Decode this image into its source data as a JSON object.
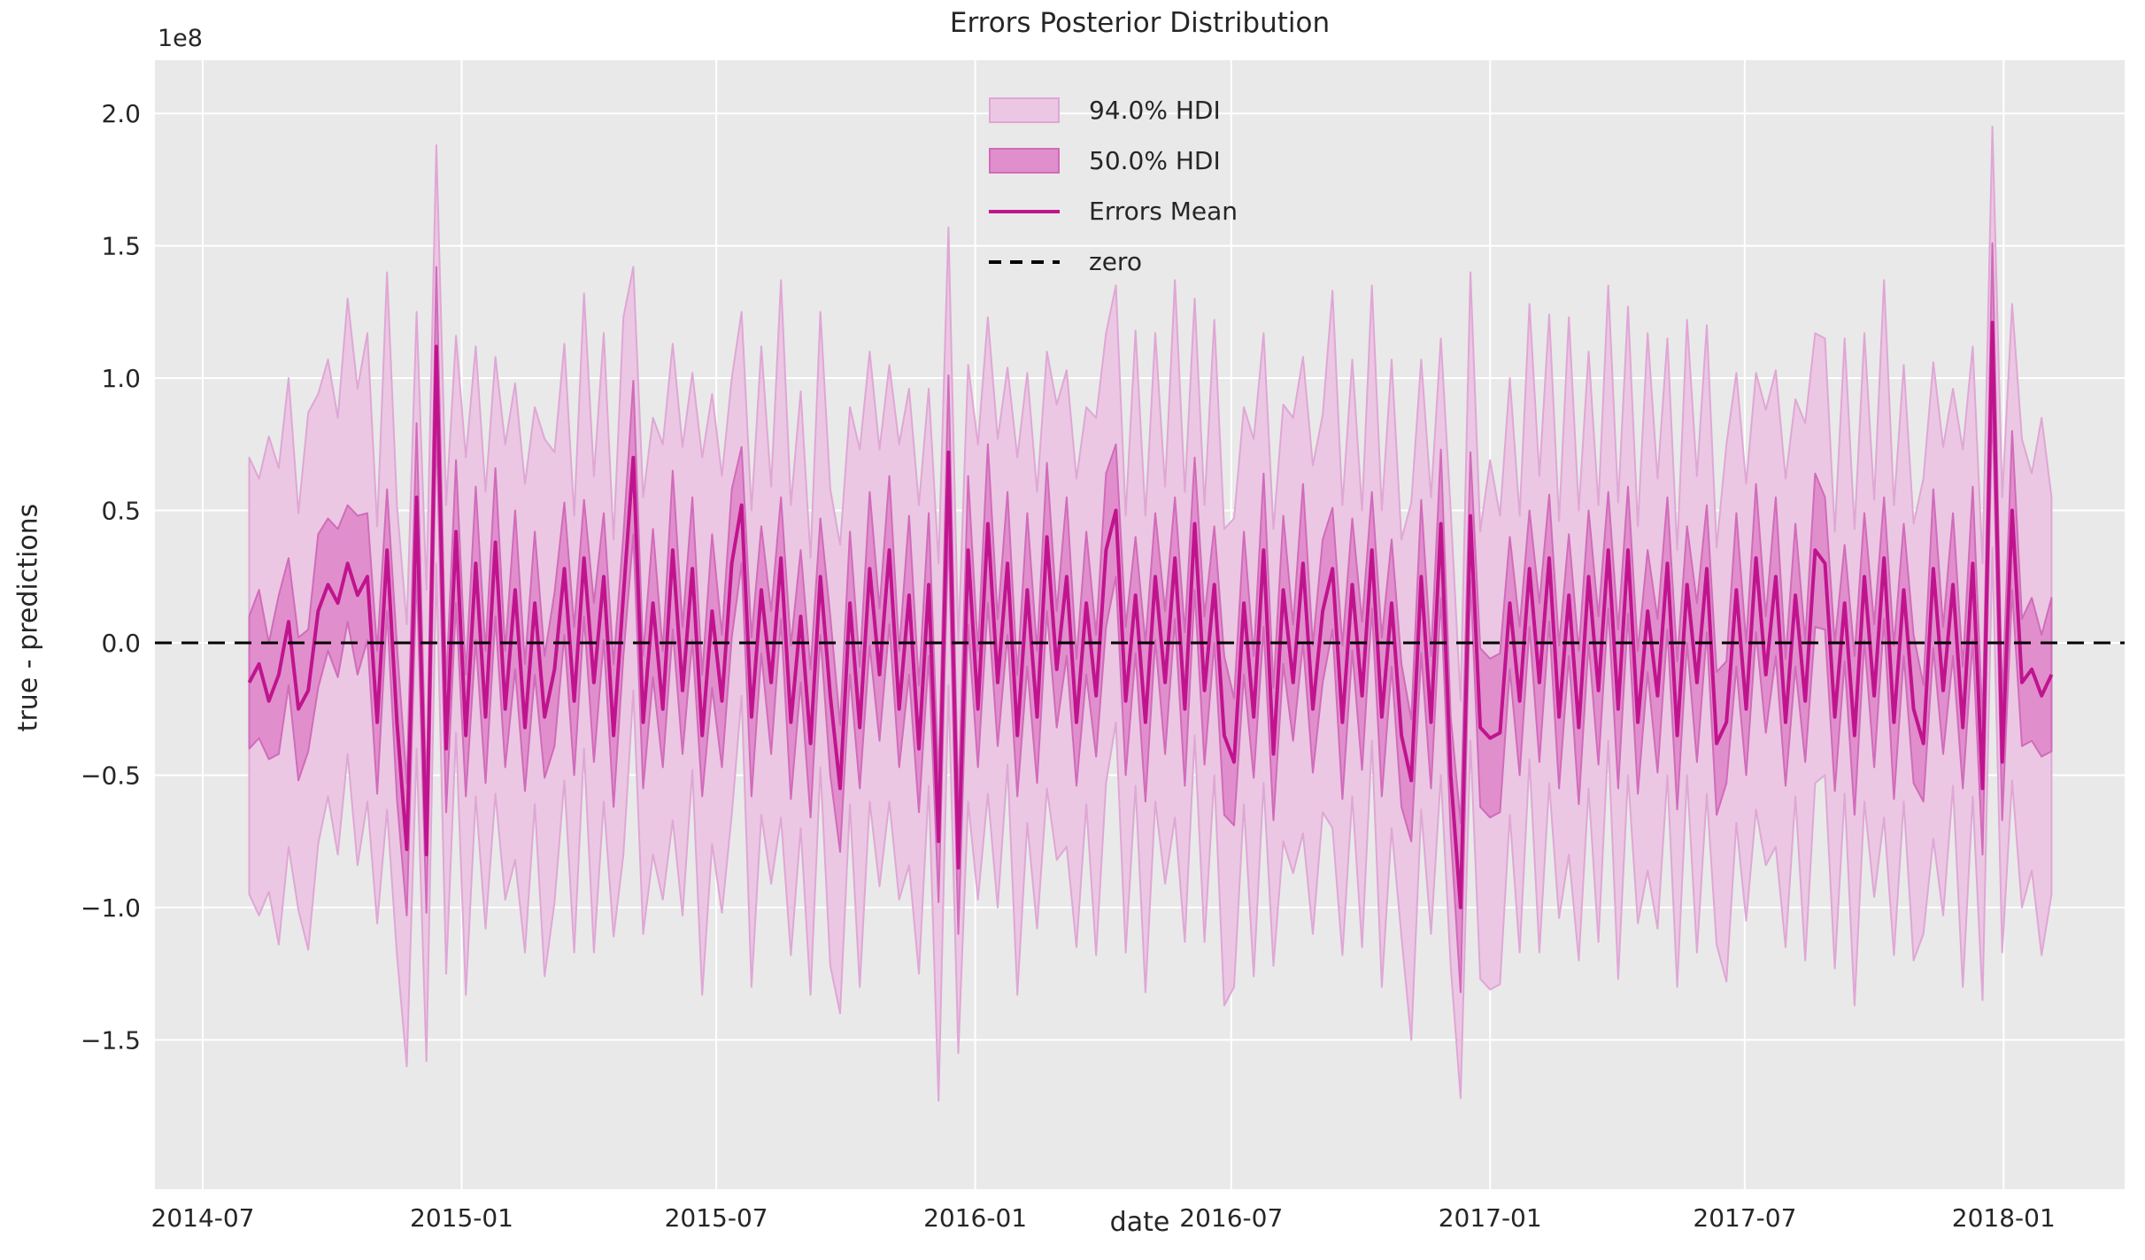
{
  "title": "Errors Posterior Distribution",
  "axes": {
    "xlabel": "date",
    "ylabel": "true - predictions",
    "offset_text": "1e8",
    "xlim": [
      "2014-05-28",
      "2018-03-28"
    ],
    "ylim": [
      -2.064,
      2.201
    ],
    "grid": true,
    "x_ticks": [
      {
        "label": "2014-07",
        "date": "2014-07-01"
      },
      {
        "label": "2015-01",
        "date": "2015-01-01"
      },
      {
        "label": "2015-07",
        "date": "2015-07-01"
      },
      {
        "label": "2016-01",
        "date": "2016-01-01"
      },
      {
        "label": "2016-07",
        "date": "2016-07-01"
      },
      {
        "label": "2017-01",
        "date": "2017-01-01"
      },
      {
        "label": "2017-07",
        "date": "2017-07-01"
      },
      {
        "label": "2018-01",
        "date": "2018-01-01"
      }
    ],
    "y_ticks": [
      {
        "label": "2.0",
        "value": 2.0
      },
      {
        "label": "1.5",
        "value": 1.5
      },
      {
        "label": "1.0",
        "value": 1.0
      },
      {
        "label": "0.5",
        "value": 0.5
      },
      {
        "label": "0.0",
        "value": 0.0
      },
      {
        "label": "−0.5",
        "value": -0.5
      },
      {
        "label": "−1.0",
        "value": -1.0
      },
      {
        "label": "−1.5",
        "value": -1.5
      }
    ]
  },
  "legend": {
    "position": "upper-center",
    "frame": false,
    "items": [
      {
        "label": "94.0% HDI",
        "swatch": "patch-light"
      },
      {
        "label": "50.0% HDI",
        "swatch": "patch-medium"
      },
      {
        "label": "Errors Mean",
        "swatch": "line"
      },
      {
        "label": "zero",
        "swatch": "dashed-line"
      }
    ]
  },
  "colors": {
    "figure_bg": "#ffffff",
    "axes_bg": "#e9e9e9",
    "grid": "#ffffff",
    "hdi94_fill": "#ebc7e3",
    "hdi94_edge": "#dfa7d5",
    "hdi50_fill": "#e08fcc",
    "hdi50_edge": "#d16bba",
    "mean_line": "#c0148e",
    "zero_line": "#000000",
    "text": "#262626"
  },
  "chart_data": {
    "type": "line+area",
    "description": "Weekly posterior error series (true - predictions). Bands: hdi94 = [mean - hdi94_below_mean, mean + hdi94_above_mean], hdi50 = mean ± hdi50_halfwidth. All y values in units of y_scale.",
    "title": "Errors Posterior Distribution",
    "xlabel": "date",
    "ylabel": "true - predictions",
    "y_scale": 100000000.0,
    "x_start": "2014-08-03",
    "x_interval_days": 7,
    "n_points": 184,
    "zero_reference_line": 0,
    "mean": [
      -0.15,
      -0.08,
      -0.22,
      -0.12,
      0.08,
      -0.25,
      -0.18,
      0.12,
      0.22,
      0.15,
      0.3,
      0.18,
      0.25,
      -0.3,
      0.35,
      -0.3,
      -0.78,
      0.55,
      -0.8,
      1.12,
      -0.4,
      0.42,
      -0.35,
      0.3,
      -0.28,
      0.38,
      -0.25,
      0.2,
      -0.32,
      0.15,
      -0.28,
      -0.1,
      0.28,
      -0.22,
      0.32,
      -0.15,
      0.25,
      -0.35,
      0.18,
      0.7,
      -0.3,
      0.15,
      -0.25,
      0.35,
      -0.18,
      0.28,
      -0.35,
      0.12,
      -0.22,
      0.3,
      0.52,
      -0.28,
      0.2,
      -0.15,
      0.32,
      -0.3,
      0.1,
      -0.38,
      0.25,
      -0.2,
      -0.55,
      0.15,
      -0.32,
      0.28,
      -0.12,
      0.35,
      -0.25,
      0.18,
      -0.4,
      0.22,
      -0.75,
      0.72,
      -0.85,
      0.35,
      -0.25,
      0.45,
      -0.15,
      0.3,
      -0.35,
      0.2,
      -0.28,
      0.4,
      -0.1,
      0.25,
      -0.3,
      0.15,
      -0.2,
      0.35,
      0.5,
      -0.22,
      0.18,
      -0.3,
      0.25,
      -0.15,
      0.32,
      -0.25,
      0.45,
      -0.18,
      0.22,
      -0.35,
      -0.45,
      0.15,
      -0.28,
      0.35,
      -0.42,
      0.2,
      -0.15,
      0.3,
      -0.25,
      0.12,
      0.28,
      -0.3,
      0.22,
      -0.2,
      0.35,
      -0.28,
      0.15,
      -0.35,
      -0.52,
      0.25,
      -0.3,
      0.45,
      -0.5,
      -1.0,
      0.48,
      -0.32,
      -0.36,
      -0.34,
      0.15,
      -0.22,
      0.28,
      -0.15,
      0.32,
      -0.28,
      0.18,
      -0.32,
      0.25,
      -0.18,
      0.35,
      -0.25,
      0.35,
      -0.3,
      0.12,
      -0.2,
      0.3,
      -0.35,
      0.22,
      -0.15,
      0.28,
      -0.38,
      -0.3,
      0.2,
      -0.25,
      0.32,
      -0.12,
      0.25,
      -0.3,
      0.18,
      -0.22,
      0.35,
      0.3,
      -0.28,
      0.15,
      -0.35,
      0.25,
      -0.2,
      0.32,
      -0.3,
      0.2,
      -0.25,
      -0.38,
      0.28,
      -0.18,
      0.22,
      -0.32,
      0.3,
      -0.55,
      1.21,
      -0.45,
      0.5,
      -0.15,
      -0.1,
      -0.2,
      -0.12
    ],
    "hdi50_halfwidth": [
      0.25,
      0.28,
      0.22,
      0.3,
      0.24,
      0.27,
      0.23,
      0.29,
      0.25,
      0.28,
      0.22,
      0.3,
      0.24,
      0.27,
      0.23,
      0.29,
      0.25,
      0.28,
      0.22,
      0.3,
      0.24,
      0.27,
      0.23,
      0.29,
      0.25,
      0.28,
      0.22,
      0.3,
      0.24,
      0.27,
      0.23,
      0.29,
      0.25,
      0.28,
      0.22,
      0.3,
      0.24,
      0.27,
      0.23,
      0.29,
      0.25,
      0.28,
      0.22,
      0.3,
      0.24,
      0.27,
      0.23,
      0.29,
      0.25,
      0.28,
      0.22,
      0.3,
      0.24,
      0.27,
      0.23,
      0.29,
      0.25,
      0.28,
      0.22,
      0.3,
      0.24,
      0.27,
      0.23,
      0.29,
      0.25,
      0.28,
      0.22,
      0.3,
      0.24,
      0.27,
      0.23,
      0.29,
      0.25,
      0.28,
      0.22,
      0.3,
      0.24,
      0.27,
      0.23,
      0.29,
      0.25,
      0.28,
      0.22,
      0.3,
      0.24,
      0.27,
      0.23,
      0.29,
      0.25,
      0.28,
      0.22,
      0.3,
      0.24,
      0.27,
      0.23,
      0.29,
      0.25,
      0.28,
      0.22,
      0.3,
      0.24,
      0.27,
      0.23,
      0.29,
      0.25,
      0.28,
      0.22,
      0.3,
      0.24,
      0.27,
      0.23,
      0.29,
      0.25,
      0.28,
      0.22,
      0.3,
      0.24,
      0.27,
      0.23,
      0.29,
      0.25,
      0.28,
      0.22,
      0.32,
      0.24,
      0.3,
      0.3,
      0.3,
      0.25,
      0.28,
      0.22,
      0.3,
      0.24,
      0.27,
      0.23,
      0.29,
      0.25,
      0.28,
      0.22,
      0.3,
      0.24,
      0.27,
      0.23,
      0.29,
      0.25,
      0.28,
      0.22,
      0.3,
      0.24,
      0.27,
      0.23,
      0.29,
      0.25,
      0.28,
      0.22,
      0.3,
      0.24,
      0.27,
      0.23,
      0.29,
      0.25,
      0.28,
      0.22,
      0.3,
      0.24,
      0.27,
      0.23,
      0.29,
      0.25,
      0.28,
      0.22,
      0.3,
      0.24,
      0.27,
      0.23,
      0.29,
      0.25,
      0.3,
      0.22,
      0.3,
      0.24,
      0.27,
      0.23,
      0.29
    ],
    "hdi94_below_mean": [
      0.8,
      0.95,
      0.72,
      1.02,
      0.85,
      0.76,
      0.98,
      0.88,
      0.8,
      0.95,
      0.72,
      1.02,
      0.85,
      0.76,
      0.98,
      0.88,
      0.82,
      0.95,
      0.78,
      0.82,
      0.85,
      0.76,
      0.98,
      0.88,
      0.8,
      0.95,
      0.72,
      1.02,
      0.85,
      0.76,
      0.98,
      0.88,
      0.8,
      0.95,
      0.72,
      1.02,
      0.85,
      0.76,
      0.98,
      0.88,
      0.8,
      0.95,
      0.72,
      1.02,
      0.85,
      0.76,
      0.98,
      0.88,
      0.8,
      0.95,
      0.72,
      1.02,
      0.85,
      0.76,
      0.98,
      0.88,
      0.8,
      0.95,
      0.72,
      1.02,
      0.85,
      0.76,
      0.98,
      0.88,
      0.8,
      0.95,
      0.72,
      1.02,
      0.85,
      0.76,
      0.98,
      0.88,
      0.7,
      0.95,
      0.72,
      1.02,
      0.85,
      0.76,
      0.98,
      0.88,
      0.8,
      0.95,
      0.72,
      1.02,
      0.85,
      0.76,
      0.98,
      0.88,
      0.8,
      0.95,
      0.72,
      1.02,
      0.85,
      0.76,
      0.98,
      0.88,
      0.8,
      0.95,
      0.72,
      1.02,
      0.85,
      0.76,
      0.98,
      0.88,
      0.8,
      0.95,
      0.72,
      1.02,
      0.85,
      0.76,
      0.98,
      0.88,
      0.8,
      0.95,
      0.72,
      1.02,
      0.85,
      0.76,
      0.98,
      0.88,
      0.8,
      0.95,
      0.72,
      0.72,
      0.85,
      0.95,
      0.95,
      0.95,
      0.8,
      0.95,
      0.72,
      1.02,
      0.85,
      0.76,
      0.98,
      0.88,
      0.8,
      0.95,
      0.72,
      1.02,
      0.85,
      0.76,
      0.98,
      0.88,
      0.8,
      0.95,
      0.72,
      1.02,
      0.85,
      0.76,
      0.98,
      0.88,
      0.8,
      0.95,
      0.72,
      1.02,
      0.85,
      0.76,
      0.98,
      0.88,
      0.8,
      0.95,
      0.72,
      1.02,
      0.85,
      0.76,
      0.98,
      0.88,
      0.8,
      0.95,
      0.72,
      1.02,
      0.85,
      0.76,
      0.98,
      0.88,
      0.8,
      0.85,
      0.72,
      1.02,
      0.85,
      0.76,
      0.98,
      0.83
    ],
    "hdi94_above_mean": [
      0.85,
      0.7,
      1.0,
      0.78,
      0.92,
      0.74,
      1.05,
      0.82,
      0.85,
      0.7,
      1.0,
      0.78,
      0.92,
      0.74,
      1.05,
      0.82,
      0.85,
      0.7,
      1.0,
      0.76,
      0.92,
      0.74,
      1.05,
      0.82,
      0.85,
      0.7,
      1.0,
      0.78,
      0.92,
      0.74,
      1.05,
      0.82,
      0.85,
      0.7,
      1.0,
      0.78,
      0.92,
      0.74,
      1.05,
      0.72,
      0.85,
      0.7,
      1.0,
      0.78,
      0.92,
      0.74,
      1.05,
      0.82,
      0.85,
      0.7,
      0.73,
      0.78,
      0.92,
      0.74,
      1.05,
      0.82,
      0.85,
      0.7,
      1.0,
      0.78,
      0.92,
      0.74,
      1.05,
      0.82,
      0.85,
      0.7,
      1.0,
      0.78,
      0.92,
      0.74,
      1.05,
      0.85,
      0.85,
      0.7,
      1.0,
      0.78,
      0.92,
      0.74,
      1.05,
      0.82,
      0.85,
      0.7,
      1.0,
      0.78,
      0.92,
      0.74,
      1.05,
      0.82,
      0.85,
      0.7,
      1.0,
      0.78,
      0.92,
      0.74,
      1.05,
      0.82,
      0.85,
      0.7,
      1.0,
      0.78,
      0.92,
      0.74,
      1.05,
      0.82,
      0.85,
      0.7,
      1.0,
      0.78,
      0.92,
      0.74,
      1.05,
      0.82,
      0.85,
      0.7,
      1.0,
      0.78,
      0.92,
      0.74,
      1.05,
      0.82,
      0.85,
      0.7,
      1.0,
      0.78,
      0.92,
      0.74,
      1.05,
      0.82,
      0.85,
      0.7,
      1.0,
      0.78,
      0.92,
      0.74,
      1.05,
      0.82,
      0.85,
      0.7,
      1.0,
      0.78,
      0.92,
      0.74,
      1.05,
      0.82,
      0.85,
      0.7,
      1.0,
      0.78,
      0.92,
      0.74,
      1.05,
      0.82,
      0.85,
      0.7,
      1.0,
      0.78,
      0.92,
      0.74,
      1.05,
      0.82,
      0.85,
      0.7,
      1.0,
      0.78,
      0.92,
      0.74,
      1.05,
      0.82,
      0.85,
      0.7,
      1.0,
      0.78,
      0.92,
      0.74,
      1.05,
      0.82,
      0.85,
      0.74,
      1.0,
      0.78,
      0.92,
      0.74,
      1.05,
      0.67
    ]
  }
}
